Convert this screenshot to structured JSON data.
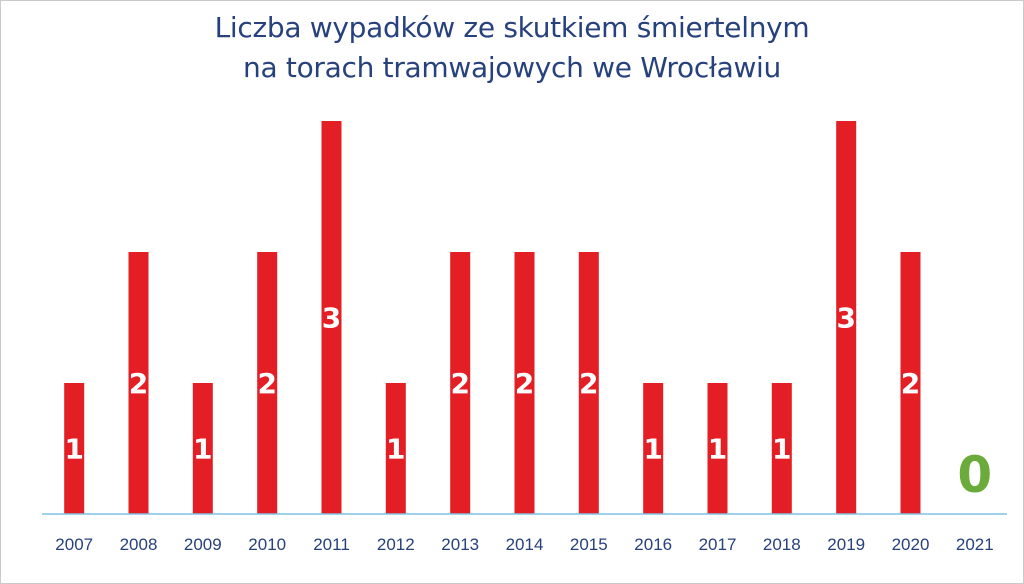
{
  "chart_data": {
    "type": "bar",
    "title_lines": [
      "Liczba wypadków ze skutkiem śmiertelnym",
      "na torach tramwajowych we Wrocławiu"
    ],
    "categories": [
      "2007",
      "2008",
      "2009",
      "2010",
      "2011",
      "2012",
      "2013",
      "2014",
      "2015",
      "2016",
      "2017",
      "2018",
      "2019",
      "2020",
      "2021"
    ],
    "values": [
      1,
      2,
      1,
      2,
      3,
      1,
      2,
      2,
      2,
      1,
      1,
      1,
      3,
      2,
      0
    ],
    "data_labels": [
      "1",
      "2",
      "1",
      "2",
      "3",
      "1",
      "2",
      "2",
      "2",
      "1",
      "1",
      "1",
      "3",
      "2",
      "0"
    ],
    "ylim": [
      0,
      3
    ],
    "grid": false,
    "legend": "none",
    "colors": {
      "bar": "#e31e25",
      "zero_label": "#6aab3c",
      "axis": "#7fc3e0",
      "text": "#27417d"
    }
  }
}
